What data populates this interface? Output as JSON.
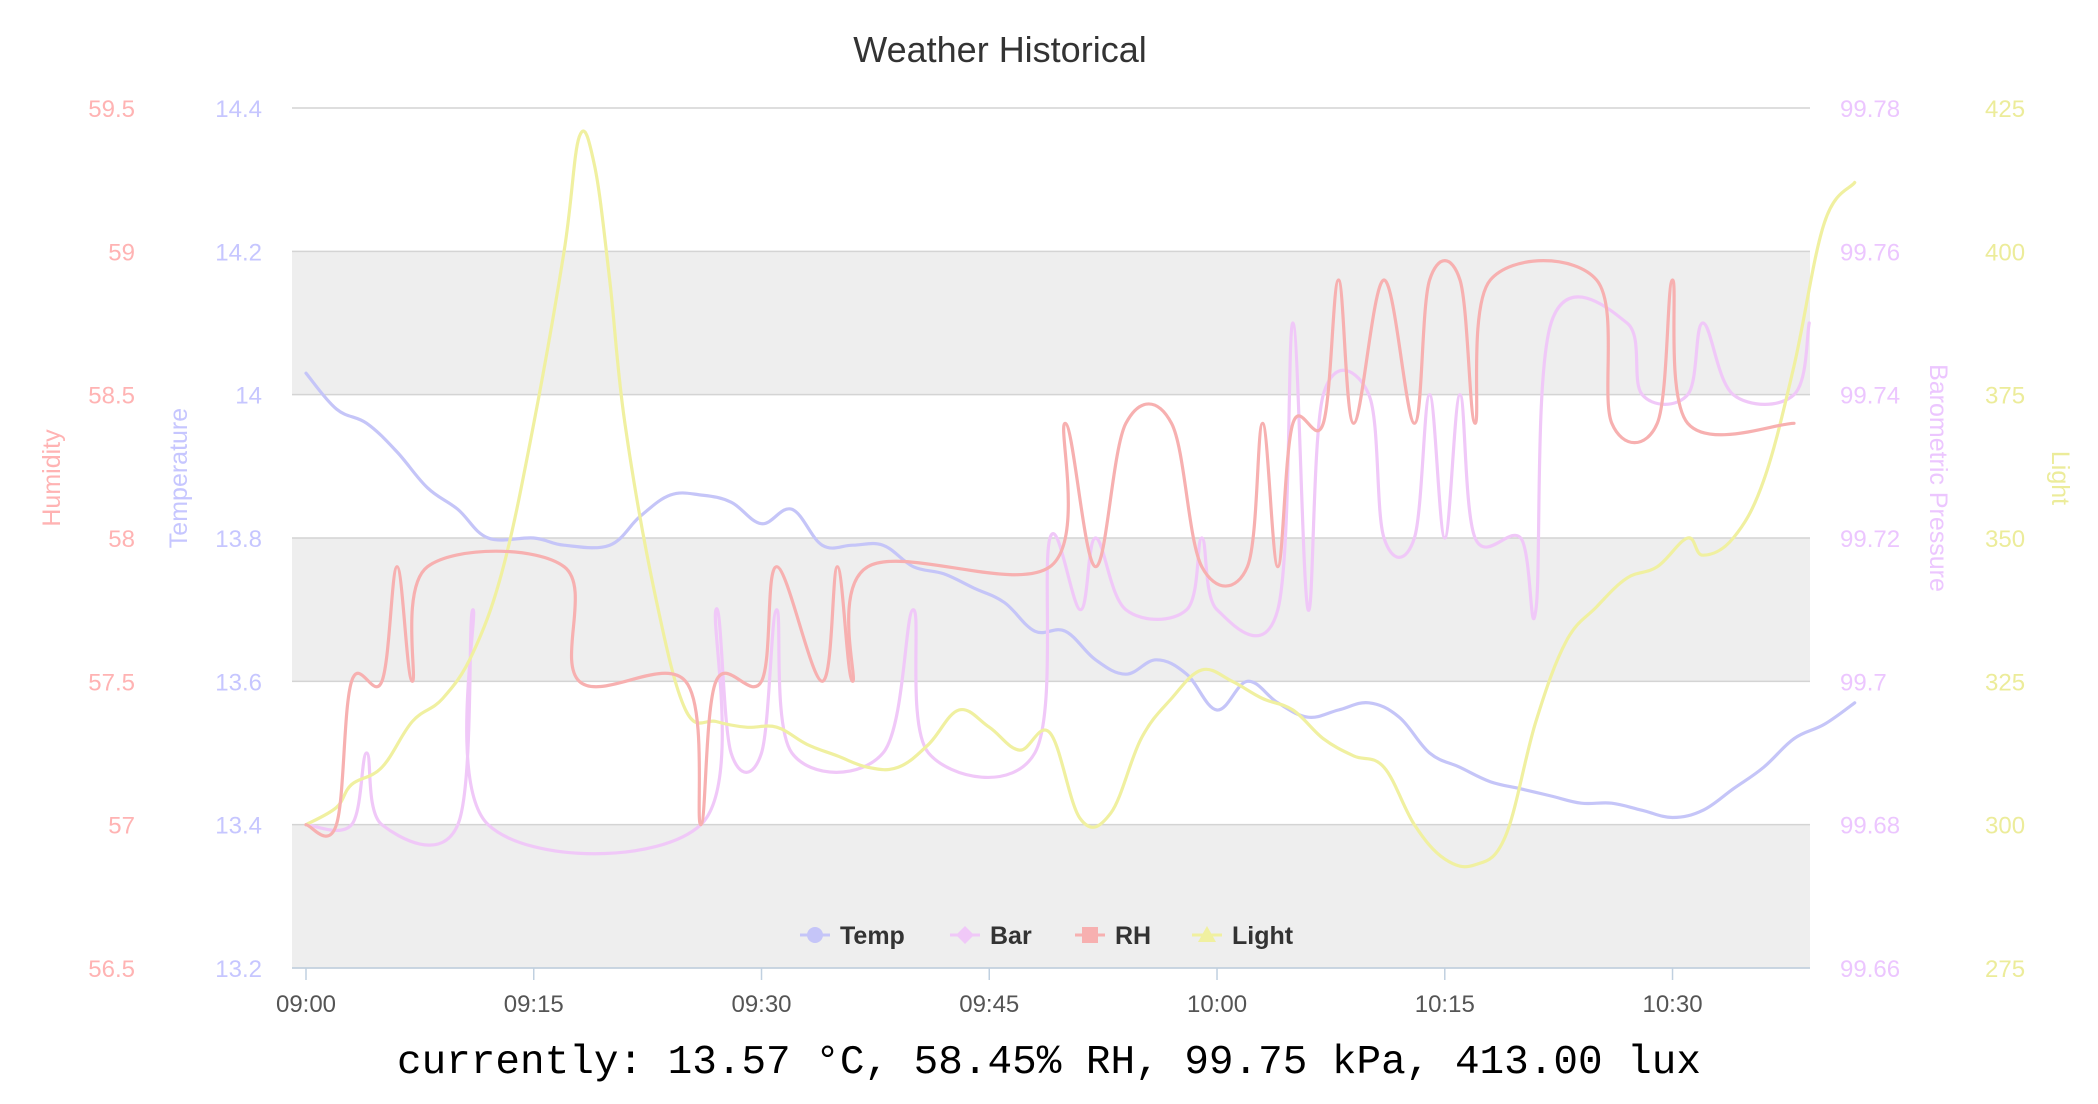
{
  "chart_data": {
    "type": "line",
    "title": "Weather Historical",
    "x_ticks": [
      "09:00",
      "09:15",
      "09:30",
      "09:45",
      "10:00",
      "10:15",
      "10:30"
    ],
    "x_unit": "minutes after 09:00",
    "xlim": [
      0,
      98
    ],
    "grid": true,
    "legend_position": "bottom-center",
    "axes": [
      {
        "id": "humidity",
        "label": "Humidity",
        "side": "left",
        "min": 56.5,
        "max": 59.5,
        "ticks": [
          "59.5",
          "59",
          "58.5",
          "58",
          "57.5",
          "57",
          "56.5"
        ],
        "color": "#ffb3b3"
      },
      {
        "id": "temperature",
        "label": "Temperature",
        "side": "left",
        "min": 13.2,
        "max": 14.4,
        "ticks": [
          "14.4",
          "14.2",
          "14",
          "13.8",
          "13.6",
          "13.4",
          "13.2"
        ],
        "color": "#c6c6ff"
      },
      {
        "id": "pressure",
        "label": "Barometric Pressure",
        "side": "right",
        "min": 99.66,
        "max": 99.78,
        "ticks": [
          "99.78",
          "99.76",
          "99.74",
          "99.72",
          "99.7",
          "99.68",
          "99.66"
        ],
        "color": "#ecc6ff"
      },
      {
        "id": "light",
        "label": "Light",
        "side": "right",
        "min": 275,
        "max": 425,
        "ticks": [
          "425",
          "400",
          "375",
          "350",
          "325",
          "300",
          "275"
        ],
        "color": "#ecec9a"
      }
    ],
    "series": [
      {
        "name": "Temp",
        "axis": "temperature",
        "color": "#c5c5f8",
        "marker": "circle",
        "points": [
          [
            0,
            14.03
          ],
          [
            2,
            13.98
          ],
          [
            4,
            13.96
          ],
          [
            6,
            13.92
          ],
          [
            8,
            13.87
          ],
          [
            10,
            13.84
          ],
          [
            12,
            13.8
          ],
          [
            15,
            13.8
          ],
          [
            17,
            13.79
          ],
          [
            20,
            13.79
          ],
          [
            22,
            13.83
          ],
          [
            24,
            13.86
          ],
          [
            26,
            13.86
          ],
          [
            28,
            13.85
          ],
          [
            30,
            13.82
          ],
          [
            32,
            13.84
          ],
          [
            34,
            13.79
          ],
          [
            36,
            13.79
          ],
          [
            38,
            13.79
          ],
          [
            40,
            13.76
          ],
          [
            42,
            13.75
          ],
          [
            44,
            13.73
          ],
          [
            46,
            13.71
          ],
          [
            48,
            13.67
          ],
          [
            50,
            13.67
          ],
          [
            52,
            13.63
          ],
          [
            54,
            13.61
          ],
          [
            56,
            13.63
          ],
          [
            58,
            13.61
          ],
          [
            60,
            13.56
          ],
          [
            62,
            13.6
          ],
          [
            64,
            13.57
          ],
          [
            66,
            13.55
          ],
          [
            68,
            13.56
          ],
          [
            70,
            13.57
          ],
          [
            72,
            13.55
          ],
          [
            74,
            13.5
          ],
          [
            76,
            13.48
          ],
          [
            78,
            13.46
          ],
          [
            80,
            13.45
          ],
          [
            82,
            13.44
          ],
          [
            84,
            13.43
          ],
          [
            86,
            13.43
          ],
          [
            88,
            13.42
          ],
          [
            90,
            13.41
          ],
          [
            92,
            13.42
          ],
          [
            94,
            13.45
          ],
          [
            96,
            13.48
          ],
          [
            98,
            13.52
          ],
          [
            100,
            13.54
          ],
          [
            102,
            13.57
          ]
        ]
      },
      {
        "name": "Bar",
        "axis": "pressure",
        "color": "#f0c8f8",
        "marker": "diamond",
        "points": [
          [
            0,
            99.68
          ],
          [
            3,
            99.68
          ],
          [
            4,
            99.69
          ],
          [
            5,
            99.68
          ],
          [
            10,
            99.68
          ],
          [
            11,
            99.71
          ],
          [
            12,
            99.68
          ],
          [
            26,
            99.68
          ],
          [
            27,
            99.71
          ],
          [
            28,
            99.69
          ],
          [
            30,
            99.69
          ],
          [
            31,
            99.71
          ],
          [
            32,
            99.69
          ],
          [
            38,
            99.69
          ],
          [
            40,
            99.71
          ],
          [
            41,
            99.69
          ],
          [
            48,
            99.69
          ],
          [
            49,
            99.72
          ],
          [
            51,
            99.71
          ],
          [
            52,
            99.72
          ],
          [
            54,
            99.71
          ],
          [
            58,
            99.71
          ],
          [
            59,
            99.72
          ],
          [
            60,
            99.71
          ],
          [
            64,
            99.71
          ],
          [
            65,
            99.75
          ],
          [
            66,
            99.71
          ],
          [
            67,
            99.74
          ],
          [
            70,
            99.74
          ],
          [
            71,
            99.72
          ],
          [
            73,
            99.72
          ],
          [
            74,
            99.74
          ],
          [
            75,
            99.72
          ],
          [
            76,
            99.74
          ],
          [
            77,
            99.72
          ],
          [
            80,
            99.72
          ],
          [
            81,
            99.71
          ],
          [
            82,
            99.75
          ],
          [
            87,
            99.75
          ],
          [
            88,
            99.74
          ],
          [
            91,
            99.74
          ],
          [
            92,
            99.75
          ],
          [
            94,
            99.74
          ],
          [
            98,
            99.74
          ],
          [
            99,
            99.75
          ]
        ]
      },
      {
        "name": "RH",
        "axis": "humidity",
        "color": "#f7b0b0",
        "marker": "square",
        "points": [
          [
            0,
            57
          ],
          [
            2,
            57
          ],
          [
            3,
            57.5
          ],
          [
            5,
            57.5
          ],
          [
            6,
            57.9
          ],
          [
            7,
            57.5
          ],
          [
            8,
            57.9
          ],
          [
            17,
            57.9
          ],
          [
            18,
            57.5
          ],
          [
            25,
            57.5
          ],
          [
            26,
            57
          ],
          [
            27,
            57.5
          ],
          [
            30,
            57.5
          ],
          [
            31,
            57.9
          ],
          [
            34,
            57.5
          ],
          [
            35,
            57.9
          ],
          [
            36,
            57.5
          ],
          [
            37,
            57.9
          ],
          [
            49,
            57.9
          ],
          [
            50,
            58.4
          ],
          [
            52,
            57.9
          ],
          [
            54,
            58.4
          ],
          [
            57,
            58.4
          ],
          [
            59,
            57.9
          ],
          [
            62,
            57.9
          ],
          [
            63,
            58.4
          ],
          [
            64,
            57.9
          ],
          [
            65,
            58.4
          ],
          [
            67,
            58.4
          ],
          [
            68,
            58.9
          ],
          [
            69,
            58.4
          ],
          [
            71,
            58.9
          ],
          [
            73,
            58.4
          ],
          [
            74,
            58.9
          ],
          [
            76,
            58.9
          ],
          [
            77,
            58.4
          ],
          [
            78,
            58.9
          ],
          [
            85,
            58.9
          ],
          [
            86,
            58.4
          ],
          [
            89,
            58.4
          ],
          [
            90,
            58.9
          ],
          [
            91,
            58.4
          ],
          [
            98,
            58.4
          ]
        ]
      },
      {
        "name": "Light",
        "axis": "light",
        "color": "#f0f0a0",
        "marker": "triangle",
        "points": [
          [
            0,
            300
          ],
          [
            2,
            303
          ],
          [
            3,
            307
          ],
          [
            5,
            310
          ],
          [
            7,
            318
          ],
          [
            9,
            322
          ],
          [
            11,
            330
          ],
          [
            13,
            345
          ],
          [
            15,
            370
          ],
          [
            17,
            400
          ],
          [
            18,
            420
          ],
          [
            19,
            415
          ],
          [
            20,
            395
          ],
          [
            21,
            370
          ],
          [
            23,
            340
          ],
          [
            25,
            320
          ],
          [
            27,
            318
          ],
          [
            29,
            317
          ],
          [
            31,
            317
          ],
          [
            33,
            314
          ],
          [
            35,
            312
          ],
          [
            37,
            310
          ],
          [
            39,
            310
          ],
          [
            41,
            314
          ],
          [
            43,
            320
          ],
          [
            45,
            317
          ],
          [
            47,
            313
          ],
          [
            49,
            316
          ],
          [
            51,
            301
          ],
          [
            53,
            302
          ],
          [
            55,
            315
          ],
          [
            57,
            322
          ],
          [
            59,
            327
          ],
          [
            61,
            325
          ],
          [
            63,
            322
          ],
          [
            65,
            320
          ],
          [
            67,
            315
          ],
          [
            69,
            312
          ],
          [
            71,
            310
          ],
          [
            73,
            300
          ],
          [
            75,
            294
          ],
          [
            77,
            293
          ],
          [
            79,
            298
          ],
          [
            81,
            318
          ],
          [
            83,
            332
          ],
          [
            85,
            338
          ],
          [
            87,
            343
          ],
          [
            89,
            345
          ],
          [
            91,
            350
          ],
          [
            92,
            347
          ],
          [
            94,
            350
          ],
          [
            96,
            360
          ],
          [
            98,
            380
          ],
          [
            100,
            405
          ],
          [
            102,
            412
          ]
        ]
      }
    ]
  },
  "status": {
    "text": "currently: 13.57 °C, 58.45% RH, 99.75 kPa, 413.00 lux"
  }
}
